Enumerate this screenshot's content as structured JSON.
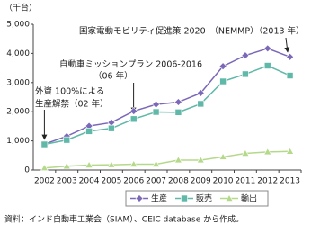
{
  "chart_data": {
    "type": "line",
    "y_label": "（千台）",
    "categories": [
      "2002",
      "2003",
      "2004",
      "2005",
      "2006",
      "2007",
      "2008",
      "2009",
      "2010",
      "2011",
      "2012",
      "2013"
    ],
    "series": [
      {
        "name": "生産",
        "color": "#7b68b8",
        "marker": "diamond",
        "values": [
          890,
          1160,
          1510,
          1630,
          2020,
          2250,
          2330,
          2640,
          3560,
          3930,
          4170,
          3880
        ]
      },
      {
        "name": "販売",
        "color": "#5fb8a8",
        "marker": "square",
        "values": [
          880,
          1030,
          1330,
          1430,
          1750,
          1990,
          1980,
          2270,
          3040,
          3290,
          3580,
          3240
        ]
      },
      {
        "name": "輸出",
        "color": "#b5d98a",
        "marker": "triangle",
        "values": [
          70,
          130,
          170,
          180,
          200,
          200,
          340,
          340,
          450,
          570,
          620,
          640
        ]
      }
    ],
    "ylim": [
      0,
      5000
    ],
    "yticks": [
      0,
      {
        "value": 1000,
        "label": "1,000"
      },
      {
        "value": 2000,
        "label": "2,000"
      },
      {
        "value": 3000,
        "label": "3,000"
      },
      {
        "value": 4000,
        "label": "4,000"
      },
      {
        "value": 5000,
        "label": "5,000"
      }
    ],
    "grid": false,
    "annotations": [
      [
        "国家電動モビリティ促進策 2020　（NEMMP）（2013 年）"
      ],
      [
        "自動車ミッションプラン 2006-2016",
        "（06 年）"
      ],
      [
        "外資 100%による",
        "生産解禁（02 年）"
      ]
    ],
    "source": "資料：インド自動車工業会（SIAM）、CEIC database から作成。"
  }
}
